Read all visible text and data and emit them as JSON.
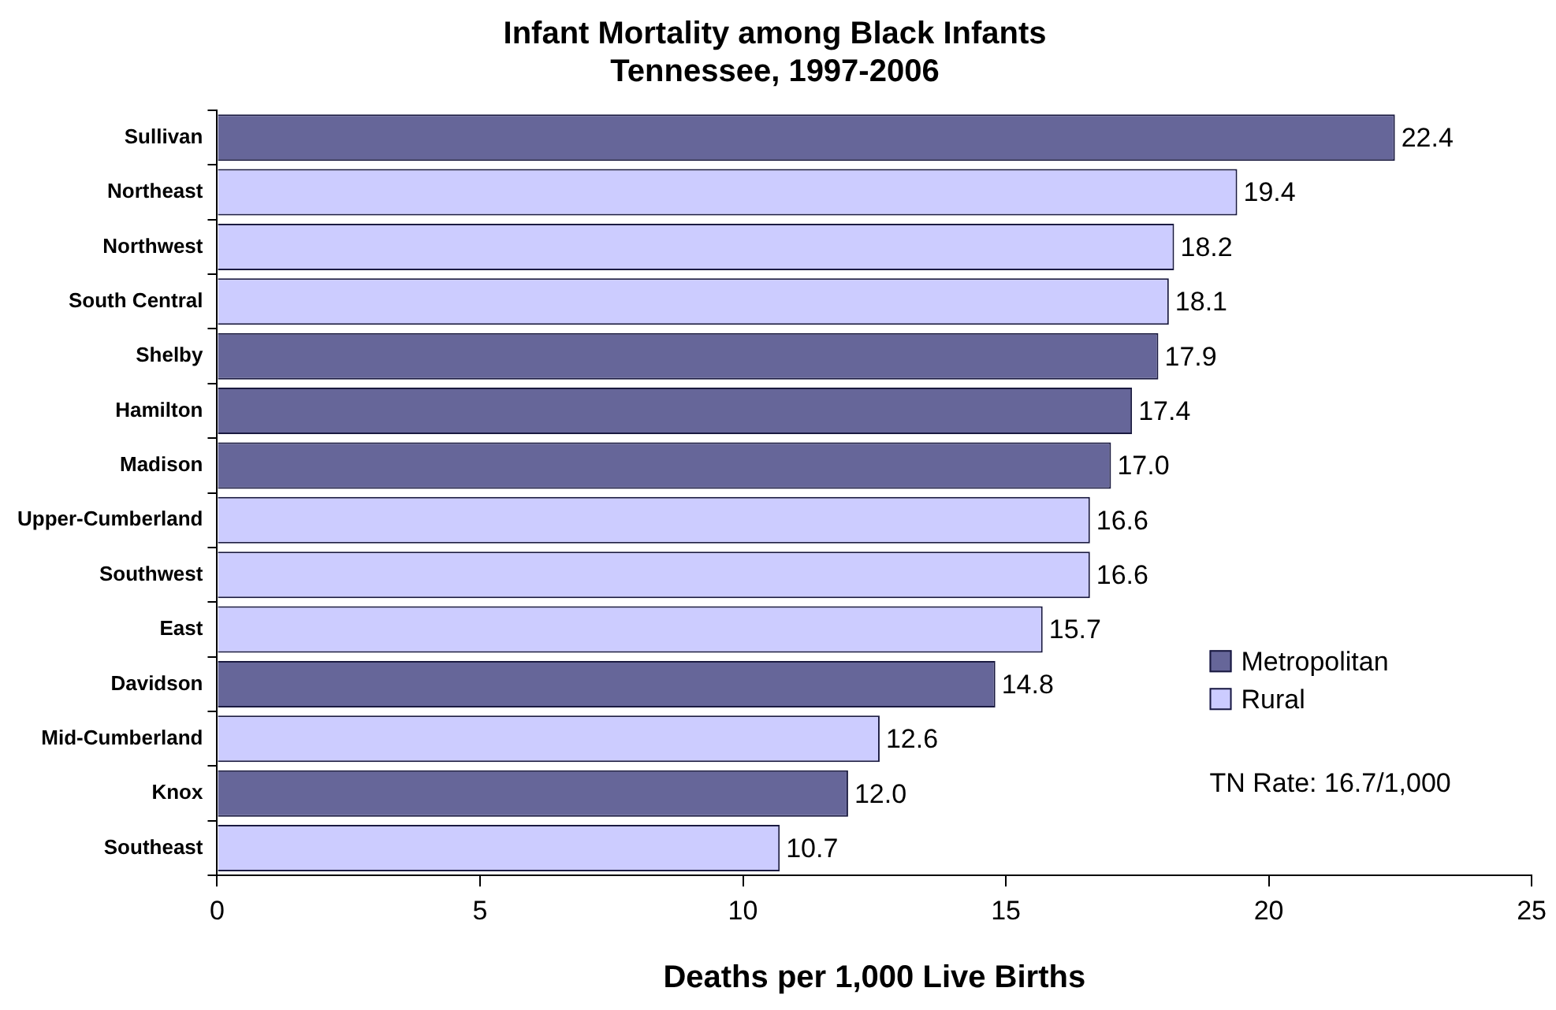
{
  "chart_data": {
    "type": "bar",
    "orientation": "horizontal",
    "title": "Infant Mortality among Black Infants\nTennessee, 1997-2006",
    "xlabel": "Deaths per 1,000 Live Births",
    "categories": [
      "Sullivan",
      "Northeast",
      "Northwest",
      "South Central",
      "Shelby",
      "Hamilton",
      "Madison",
      "Upper-Cumberland",
      "Southwest",
      "East",
      "Davidson",
      "Mid-Cumberland",
      "Knox",
      "Southeast"
    ],
    "series": [
      {
        "name": "Metropolitan",
        "color": "#666699",
        "values": [
          22.4,
          null,
          null,
          null,
          17.9,
          17.4,
          17.0,
          null,
          null,
          null,
          14.8,
          null,
          12.0,
          null
        ],
        "value_labels": [
          "22.4",
          null,
          null,
          null,
          "17.9",
          "17.4",
          "17.0",
          null,
          null,
          null,
          "14.8",
          null,
          "12.0",
          null
        ]
      },
      {
        "name": "Rural",
        "color": "#ccccff",
        "values": [
          null,
          19.4,
          18.2,
          18.1,
          null,
          null,
          null,
          16.6,
          16.6,
          15.7,
          null,
          12.6,
          null,
          10.7
        ],
        "value_labels": [
          null,
          "19.4",
          "18.2",
          "18.1",
          null,
          null,
          null,
          "16.6",
          "16.6",
          "15.7",
          null,
          "12.6",
          null,
          "10.7"
        ]
      }
    ],
    "xlim": [
      0,
      25
    ],
    "xticks": [
      0,
      5,
      10,
      15,
      20,
      25
    ],
    "grid": false,
    "legend": "right",
    "annotations": [
      "TN Rate: 16.7/1,000"
    ]
  }
}
